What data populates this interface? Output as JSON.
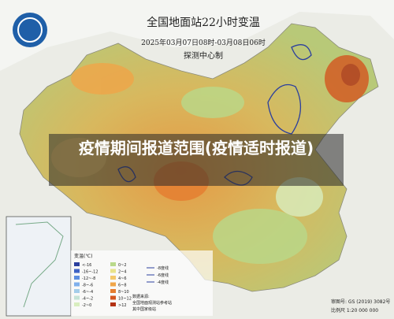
{
  "header": {
    "title": "全国地面站22小时变温",
    "subtitle": "2025年03月07日08时-03月08日06时",
    "producer": "探测中心制"
  },
  "overlay": {
    "text": "疫情期间报道范围(疫情适时报道)"
  },
  "legend": {
    "title": "变温(℃)",
    "items": [
      {
        "label": "<-16",
        "color": "#2b3f9e"
      },
      {
        "label": "-16~-12",
        "color": "#3f63c4"
      },
      {
        "label": "-12~-8",
        "color": "#5d8ee0"
      },
      {
        "label": "-8~-6",
        "color": "#7fb0ec"
      },
      {
        "label": "-6~-4",
        "color": "#a4cdea"
      },
      {
        "label": "-4~-2",
        "color": "#c5e3d6"
      },
      {
        "label": "-2~0",
        "color": "#d9eebf"
      },
      {
        "label": "0~2",
        "color": "#b9d98a"
      },
      {
        "label": "2~4",
        "color": "#e8e38a"
      },
      {
        "label": "4~6",
        "color": "#f3c86a"
      },
      {
        "label": "6~8",
        "color": "#f0a548"
      },
      {
        "label": "8~10",
        "color": "#e57d30"
      },
      {
        "label": "10~12",
        "color": "#d4561f"
      },
      {
        "label": ">12",
        "color": "#b33114"
      }
    ],
    "lines": [
      "-8度线",
      "-6度线",
      "-4度线"
    ]
  },
  "notes": [
    "数据来源:",
    "全国地面观测站参考站",
    "其中国家级站"
  ],
  "footer": {
    "approval": "审图号: GS (2019) 3082号",
    "scale": "比例尺 1:20 000 000"
  }
}
